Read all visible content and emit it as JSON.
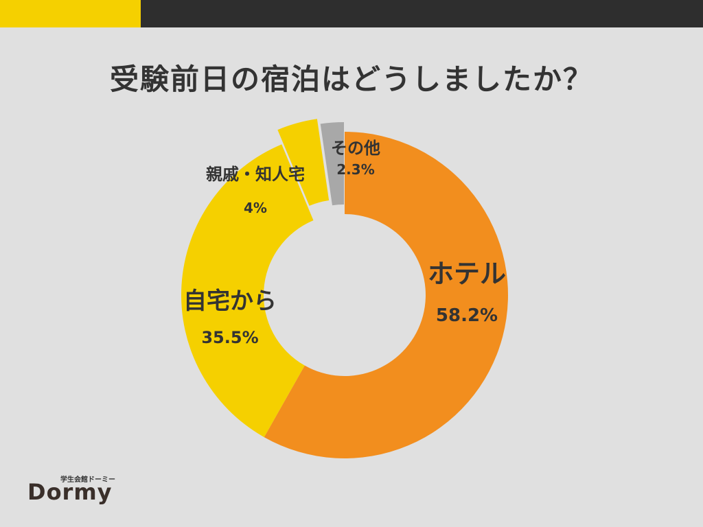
{
  "header": {
    "accent_color": "#f5d000",
    "bar_color": "#2e2e2e"
  },
  "title": "受験前日の宿泊はどうしましたか？",
  "chart_data": {
    "type": "pie",
    "donut": true,
    "title": "受験前日の宿泊はどうしましたか？",
    "slices": [
      {
        "label": "ホテル",
        "value": 58.2,
        "value_label": "58.2%",
        "color": "#f28e1e"
      },
      {
        "label": "自宅から",
        "value": 35.5,
        "value_label": "35.5%",
        "color": "#f5d000"
      },
      {
        "label": "親戚・知人宅",
        "value": 4,
        "value_label": "4%",
        "color": "#f5d000"
      },
      {
        "label": "その他",
        "value": 2.3,
        "value_label": "2.3%",
        "color": "#a8a8a8"
      }
    ],
    "start": "12 o'clock",
    "direction": "clockwise"
  },
  "logo": {
    "subtitle": "学生会館ドーミー",
    "name": "Dormy"
  }
}
